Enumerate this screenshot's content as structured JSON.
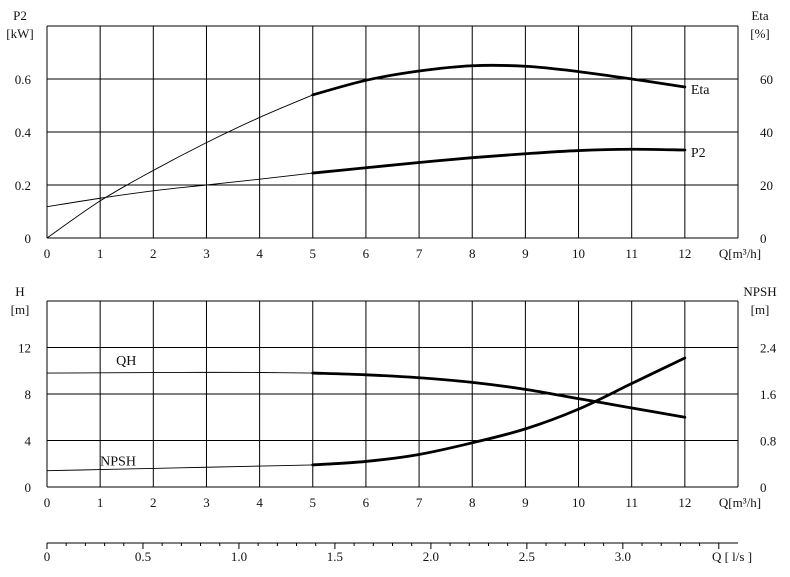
{
  "chart_data": [
    {
      "type": "line",
      "panel": "top",
      "x": [
        0,
        1,
        2,
        3,
        4,
        5,
        6,
        7,
        8,
        9,
        10,
        11,
        12
      ],
      "xlim": [
        0,
        12
      ],
      "xlabel": "Q[m³/h]",
      "left_axis": {
        "name": "P2",
        "unit": "[kW]",
        "ylim": [
          0,
          0.8
        ],
        "ticks": [
          0,
          0.2,
          0.4,
          0.6
        ]
      },
      "right_axis": {
        "name": "Eta",
        "unit": "[%]",
        "ylim": [
          0,
          80
        ],
        "ticks": [
          0,
          20,
          40,
          60
        ]
      },
      "grid": true,
      "series": [
        {
          "name": "Eta",
          "axis": "right",
          "x": [
            0,
            1,
            2,
            3,
            4,
            5,
            6,
            7,
            8,
            9,
            10,
            11,
            12
          ],
          "values": [
            0,
            14,
            25.5,
            36,
            45.5,
            54,
            59.5,
            63,
            65,
            64.8,
            62.8,
            60,
            57
          ],
          "bold_from_x": 5
        },
        {
          "name": "P2",
          "axis": "left",
          "x": [
            0,
            1,
            2,
            3,
            4,
            5,
            6,
            7,
            8,
            9,
            10,
            11,
            12
          ],
          "values": [
            0.118,
            0.15,
            0.178,
            0.2,
            0.222,
            0.245,
            0.265,
            0.285,
            0.303,
            0.318,
            0.33,
            0.335,
            0.332
          ],
          "bold_from_x": 5
        }
      ]
    },
    {
      "type": "line",
      "panel": "bottom",
      "x": [
        0,
        1,
        2,
        3,
        4,
        5,
        6,
        7,
        8,
        9,
        10,
        11,
        12
      ],
      "xlim": [
        0,
        12
      ],
      "xlabel": "Q[m³/h]",
      "left_axis": {
        "name": "H",
        "unit": "[m]",
        "ylim": [
          0,
          16
        ],
        "ticks": [
          0,
          4,
          8,
          12
        ]
      },
      "right_axis": {
        "name": "NPSH",
        "unit": "[m]",
        "ylim": [
          0,
          3.2
        ],
        "ticks": [
          "0",
          "0.8",
          "1.6",
          "2.4"
        ]
      },
      "grid": true,
      "series": [
        {
          "name": "QH",
          "axis": "left",
          "x": [
            0,
            1,
            2,
            3,
            4,
            5,
            6,
            7,
            8,
            9,
            10,
            11,
            12
          ],
          "values": [
            9.8,
            9.82,
            9.84,
            9.86,
            9.85,
            9.8,
            9.65,
            9.4,
            9.0,
            8.4,
            7.6,
            6.8,
            6.0
          ],
          "bold_from_x": 5
        },
        {
          "name": "NPSH",
          "axis": "right",
          "x": [
            0,
            1,
            2,
            3,
            4,
            5,
            6,
            7,
            8,
            9,
            10,
            11,
            12
          ],
          "values": [
            0.28,
            0.3,
            0.32,
            0.34,
            0.36,
            0.38,
            0.44,
            0.56,
            0.76,
            1.0,
            1.34,
            1.78,
            2.22
          ],
          "bold_from_x": 5
        }
      ]
    },
    {
      "type": "axis",
      "panel": "secondary-x-axis",
      "xlabel": "Q [ l/s ]",
      "ticks": [
        "0",
        "0.5",
        "1.0",
        "1.5",
        "2.0",
        "2.5",
        "3.0"
      ],
      "xlim": [
        0,
        3.333
      ]
    }
  ]
}
